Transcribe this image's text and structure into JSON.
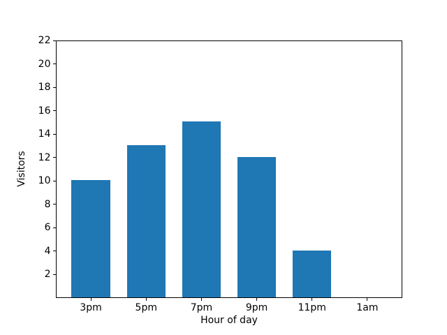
{
  "chart_data": {
    "type": "bar",
    "xlabel": "Hour of day",
    "ylabel": "Visitors",
    "categories": [
      "3pm",
      "5pm",
      "7pm",
      "9pm",
      "11pm",
      "1am"
    ],
    "values": [
      10,
      13,
      15,
      12,
      4,
      0
    ],
    "yticks": [
      2,
      4,
      6,
      8,
      10,
      12,
      14,
      16,
      18,
      20,
      22
    ],
    "ylim": [
      0,
      22
    ],
    "xlim": [
      -0.633,
      5.633
    ],
    "bar_width": 0.7,
    "bar_color": "#1f77b4",
    "axis_color": "#000000",
    "background_color": "#ffffff",
    "grid": false,
    "legend": false
  }
}
